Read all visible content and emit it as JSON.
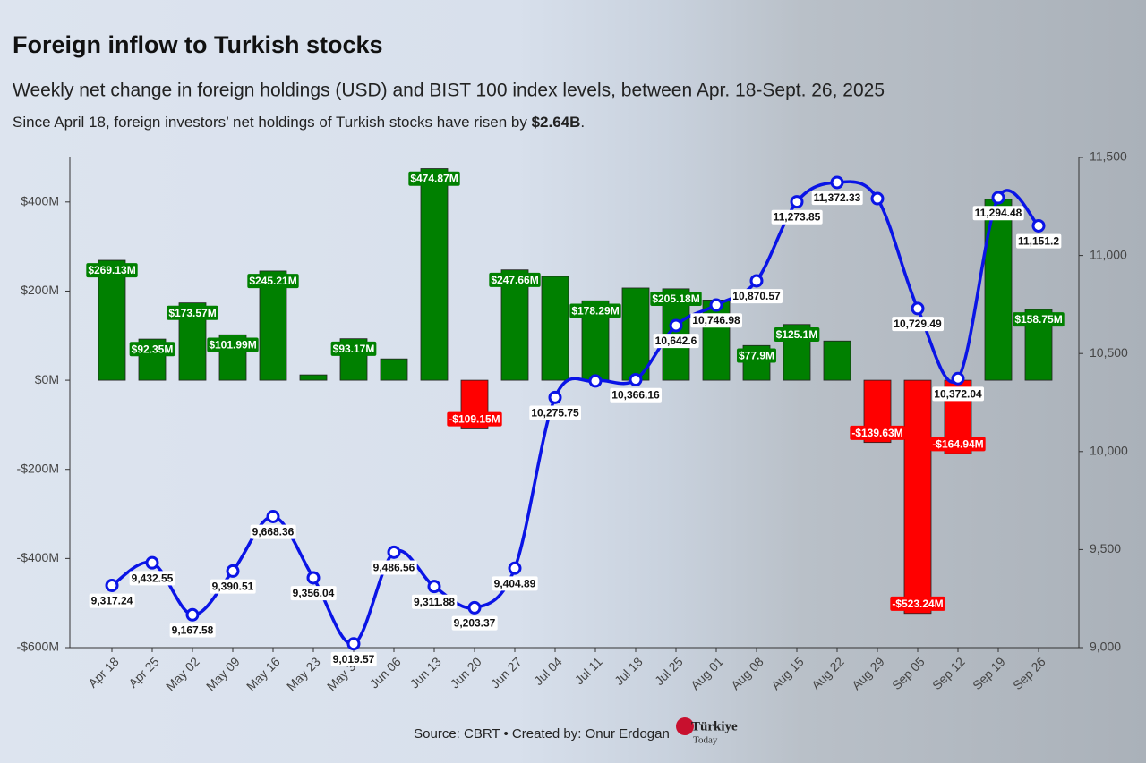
{
  "chart_data": {
    "type": "bar-line",
    "title": "Foreign inflow to Turkish stocks",
    "subtitle": "Weekly net change in foreign holdings (USD) and BIST 100 index levels, between Apr. 18-Sept. 26, 2025",
    "note": [
      "Since April 18, foreign investors’ net holdings of Turkish stocks have risen by ",
      "$2.64B",
      "."
    ],
    "source": "Source: CBRT • Created by: Onur Erdogan",
    "logo": [
      "Türkiye",
      "Today"
    ],
    "categories": [
      "Apr 18",
      "Apr 25",
      "May 02",
      "May 09",
      "May 16",
      "May 23",
      "May 30",
      "Jun 06",
      "Jun 13",
      "Jun 20",
      "Jun 27",
      "Jul 04",
      "Jul 11",
      "Jul 18",
      "Jul 25",
      "Aug 01",
      "Aug 08",
      "Aug 15",
      "Aug 22",
      "Aug 29",
      "Sep 05",
      "Sep 12",
      "Sep 19",
      "Sep 26"
    ],
    "series": [
      {
        "type": "bar",
        "color": "#008000",
        "negative_color": "#ff0000",
        "values": [
          269.13,
          92.35,
          173.57,
          101.99,
          245.21,
          12,
          93.17,
          48,
          474.87,
          -109.15,
          247.66,
          233,
          178.29,
          207,
          205.18,
          180,
          77.9,
          125.1,
          88,
          -139.63,
          -523.24,
          -164.94,
          406,
          158.75
        ],
        "value_labels": [
          "$269.13M",
          "$92.35M",
          "$173.57M",
          "$101.99M",
          "$245.21M",
          null,
          "$93.17M",
          null,
          "$474.87M",
          "-$109.15M",
          "$247.66M",
          null,
          "$178.29M",
          null,
          "$205.18M",
          null,
          "$77.9M",
          "$125.1M",
          null,
          "-$139.63M",
          "-$523.24M",
          "-$164.94M",
          null,
          "$158.75M"
        ]
      },
      {
        "type": "line",
        "axis": "y2",
        "color": "#0a14e6",
        "values": [
          9317.24,
          9432.55,
          9167.58,
          9390.51,
          9668.36,
          9356.04,
          9019.57,
          9486.56,
          9311.88,
          9203.37,
          9404.89,
          10275.75,
          10360,
          10366.16,
          10642.6,
          10746.98,
          10870.57,
          11273.85,
          11372.33,
          11290,
          10729.49,
          10372.04,
          11294.48,
          11151.2
        ],
        "value_labels": [
          "9,317.24",
          "9,432.55",
          "9,167.58",
          "9,390.51",
          "9,668.36",
          "9,356.04",
          "9,019.57",
          "9,486.56",
          "9,311.88",
          "9,203.37",
          "9,404.89",
          "10,275.75",
          null,
          "10,366.16",
          "10,642.6",
          "10,746.98",
          "10,870.57",
          "11,273.85",
          "11,372.33",
          null,
          "10,729.49",
          "10,372.04",
          "11,294.48",
          "11,151.2"
        ]
      }
    ],
    "ylim": [
      -600,
      500
    ],
    "yticks": [
      {
        "value": -600,
        "label": "-$600M"
      },
      {
        "value": -400,
        "label": "-$400M"
      },
      {
        "value": -200,
        "label": "-$200M"
      },
      {
        "value": 0,
        "label": "$0M"
      },
      {
        "value": 200,
        "label": "$200M"
      },
      {
        "value": 400,
        "label": "$400M"
      }
    ],
    "y2lim": [
      9000,
      11500
    ],
    "y2ticks": [
      {
        "value": 9000,
        "label": "9,000"
      },
      {
        "value": 9500,
        "label": "9,500"
      },
      {
        "value": 10000,
        "label": "10,000"
      },
      {
        "value": 10500,
        "label": "10,500"
      },
      {
        "value": 11000,
        "label": "11,000"
      },
      {
        "value": 11500,
        "label": "11,500"
      }
    ]
  }
}
